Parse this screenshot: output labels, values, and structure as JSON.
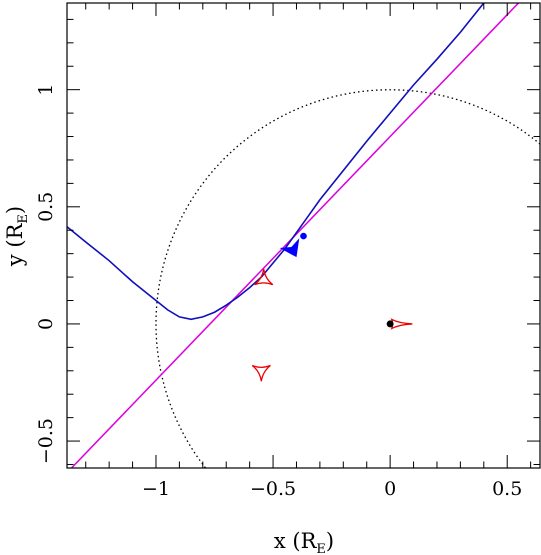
{
  "chart_data": {
    "type": "line",
    "xlabel": {
      "main": "x (R",
      "sub": "E",
      "close": ")"
    },
    "ylabel": {
      "main": "y (R",
      "sub": "E",
      "close": ")"
    },
    "xlim": [
      -1.38,
      0.64
    ],
    "ylim": [
      -0.615,
      1.37
    ],
    "x_ticks": [
      {
        "value": -1,
        "label": "−1"
      },
      {
        "value": -0.5,
        "label": "−0.5"
      },
      {
        "value": 0,
        "label": "0"
      },
      {
        "value": 0.5,
        "label": "0.5"
      }
    ],
    "y_ticks": [
      {
        "value": -0.5,
        "label": "−0.5"
      },
      {
        "value": 0,
        "label": "0"
      },
      {
        "value": 0.5,
        "label": "0.5"
      },
      {
        "value": 1,
        "label": "1"
      }
    ],
    "x_minor_step": 0.1,
    "y_minor_step": 0.1,
    "grid": false,
    "legend": "none",
    "colors": {
      "straight_line": "#dd00dd",
      "curved_trajectory": "#1010bb",
      "caustics": "#ee0000",
      "einstein_ring": "#000000",
      "arrow": "#0000ff"
    },
    "einstein_ring": {
      "center": [
        0,
        0
      ],
      "radius": 1,
      "style": "dotted"
    },
    "straight_line": {
      "slope": 1.04,
      "intercept": 0.8,
      "x_range": [
        -1.38,
        0.64
      ]
    },
    "curved_trajectory": {
      "points": [
        [
          -1.38,
          0.415
        ],
        [
          -1.3,
          0.35
        ],
        [
          -1.2,
          0.27
        ],
        [
          -1.1,
          0.18
        ],
        [
          -1.0,
          0.1
        ],
        [
          -0.95,
          0.06
        ],
        [
          -0.9,
          0.03
        ],
        [
          -0.85,
          0.02
        ],
        [
          -0.8,
          0.03
        ],
        [
          -0.75,
          0.05
        ],
        [
          -0.7,
          0.08
        ],
        [
          -0.65,
          0.115
        ],
        [
          -0.6,
          0.155
        ],
        [
          -0.55,
          0.2
        ],
        [
          -0.5,
          0.26
        ],
        [
          -0.45,
          0.32
        ],
        [
          -0.4,
          0.39
        ],
        [
          -0.35,
          0.46
        ],
        [
          -0.3,
          0.53
        ],
        [
          -0.2,
          0.655
        ],
        [
          -0.1,
          0.78
        ],
        [
          0.0,
          0.9
        ],
        [
          0.1,
          1.02
        ],
        [
          0.2,
          1.13
        ],
        [
          0.3,
          1.245
        ],
        [
          0.4,
          1.37
        ]
      ]
    },
    "source_marker": {
      "x": -0.37,
      "y": 0.375
    },
    "direction_arrow": {
      "tip": [
        -0.4,
        0.285
      ],
      "tail": [
        -0.43,
        0.345
      ]
    },
    "lens_marker": {
      "x": 0.0,
      "y": 0.0
    },
    "caustics": [
      {
        "center": [
          -0.54,
          0.19
        ],
        "shape": "triangle",
        "size": 0.045,
        "rotation": 0
      },
      {
        "center": [
          -0.55,
          -0.2
        ],
        "shape": "triangle",
        "size": 0.045,
        "rotation": 180
      },
      {
        "center": [
          0.04,
          0.0
        ],
        "shape": "arrowhead",
        "size": 0.055,
        "rotation": 0
      }
    ]
  }
}
